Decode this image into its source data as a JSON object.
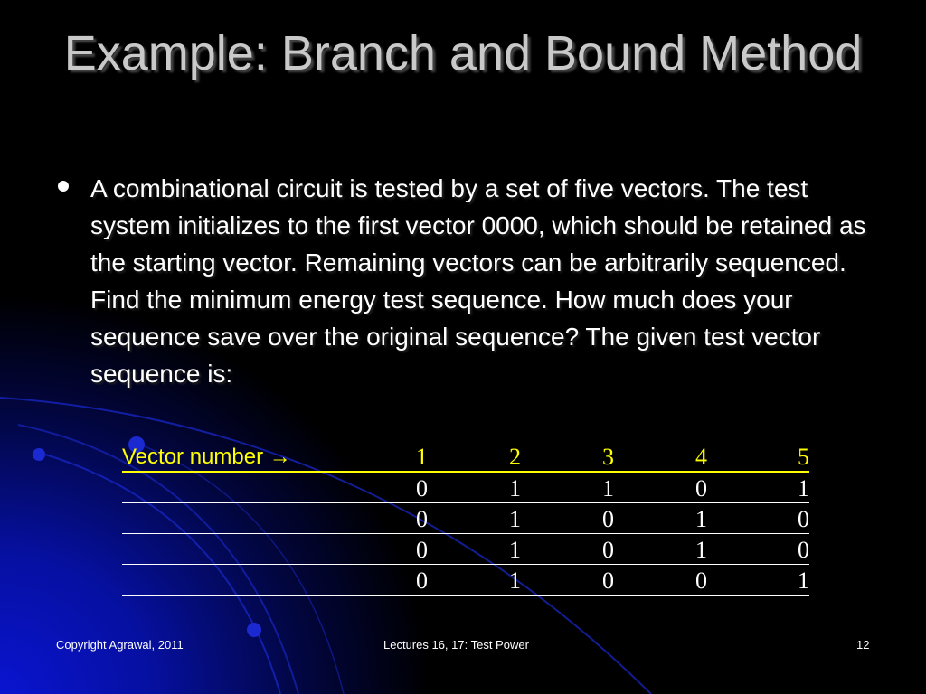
{
  "slide": {
    "title": "Example: Branch and Bound Method",
    "body": "A combinational circuit is tested by a set of five vectors. The test system initializes to the first vector 0000, which should be retained as the starting vector. Remaining vectors can be arbitrarily sequenced. Find the minimum energy test sequence. How much does your sequence save over the original sequence? The given test vector sequence is:",
    "table": {
      "header_label": "Vector number →",
      "columns": [
        "1",
        "2",
        "3",
        "4",
        "5"
      ],
      "rows": [
        [
          "0",
          "1",
          "1",
          "0",
          "1"
        ],
        [
          "0",
          "1",
          "0",
          "1",
          "0"
        ],
        [
          "0",
          "1",
          "0",
          "1",
          "0"
        ],
        [
          "0",
          "1",
          "0",
          "0",
          "1"
        ]
      ]
    }
  },
  "footer": {
    "left": "Copyright Agrawal, 2011",
    "center": "Lectures 16, 17: Test Power",
    "page": "12"
  },
  "colors": {
    "background": "#000000",
    "accent_blue": "#0a14d0",
    "header_yellow": "#ffff00",
    "title": "#c9c9c9"
  }
}
